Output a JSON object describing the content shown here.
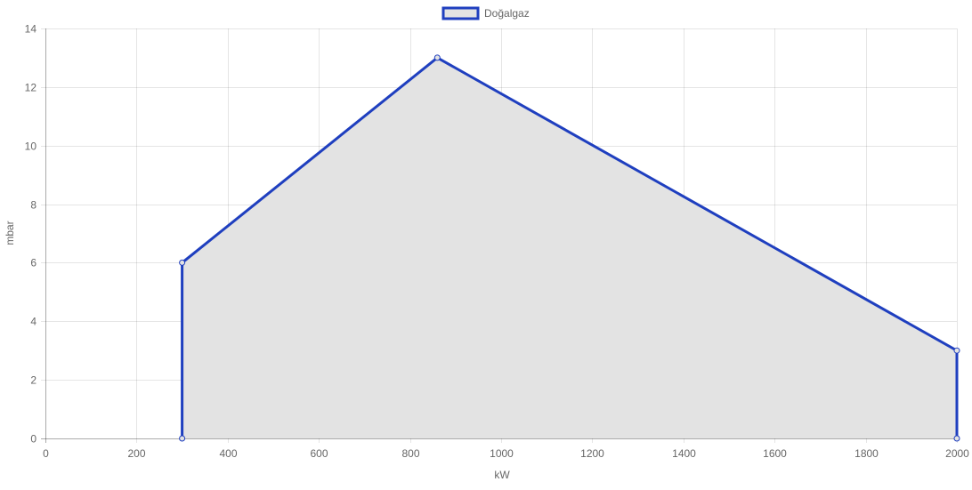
{
  "chart_data": {
    "type": "area",
    "title": "",
    "legend": {
      "position": "top",
      "entries": [
        "Doğalgaz"
      ]
    },
    "xlabel": "kW",
    "ylabel": "mbar",
    "xlim": [
      0,
      2000
    ],
    "ylim": [
      0,
      14
    ],
    "x_ticks": [
      0,
      200,
      400,
      600,
      800,
      1000,
      1200,
      1400,
      1600,
      1800,
      2000
    ],
    "y_ticks": [
      0,
      2,
      4,
      6,
      8,
      10,
      12,
      14
    ],
    "grid": true,
    "series": [
      {
        "name": "Doğalgaz",
        "points": [
          {
            "x": 300,
            "y": 0
          },
          {
            "x": 300,
            "y": 6
          },
          {
            "x": 860,
            "y": 13
          },
          {
            "x": 2000,
            "y": 3
          },
          {
            "x": 2000,
            "y": 0
          }
        ],
        "line_color": "#1f3fbf",
        "fill_color": "#e3e3e3"
      }
    ]
  }
}
